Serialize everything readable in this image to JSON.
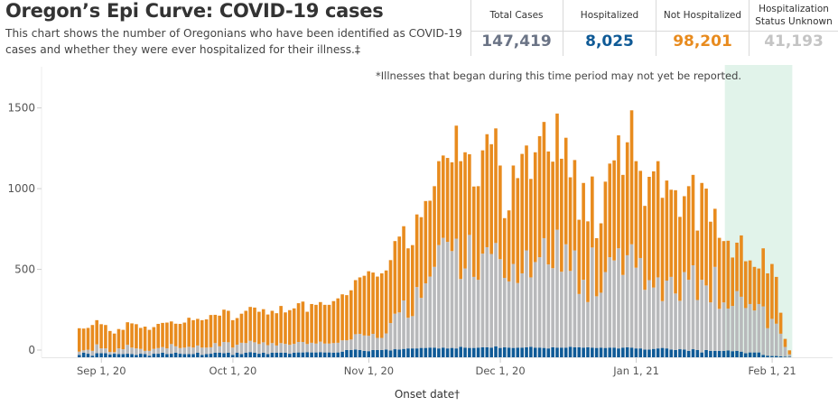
{
  "header": {
    "title": "Oregon’s Epi Curve: COVID-19 cases",
    "subtitle": "This chart shows the number of Oregonians who have been identified as COVID-19 cases and whether they were ever hospitalized for their illness.‡"
  },
  "kpis": [
    {
      "label": "Total Cases",
      "value": "147,419",
      "color": "#6b7486"
    },
    {
      "label": "Hospitalized",
      "value": "8,025",
      "color": "#0f5a96"
    },
    {
      "label": "Not Hospitalized",
      "value": "98,201",
      "color": "#e88b1e"
    },
    {
      "label": "Hospitalization Status Unknown",
      "value": "41,193",
      "color": "#c4c4c4"
    }
  ],
  "note": "*Illnesses that began during this time period may not yet be reported.",
  "chart_data": {
    "type": "bar",
    "stacked": true,
    "title": "",
    "xlabel": "Onset date†",
    "ylabel": "",
    "ylim": [
      0,
      1720
    ],
    "yticks": [
      0,
      500,
      1000,
      1500
    ],
    "x_start_date": "2020-08-27",
    "xticks": [
      {
        "label": "Sep 1, 20",
        "date": "2020-09-01"
      },
      {
        "label": "Oct 1, 20",
        "date": "2020-10-01"
      },
      {
        "label": "Nov 1, 20",
        "date": "2020-11-01"
      },
      {
        "label": "Dec 1, 20",
        "date": "2020-12-01"
      },
      {
        "label": "Jan 1, 21",
        "date": "2021-01-01"
      },
      {
        "label": "Feb 1, 21",
        "date": "2021-02-01"
      }
    ],
    "shaded_region": {
      "start_date": "2021-01-21",
      "end_date": "2021-02-06",
      "color": "#e1f3ea",
      "meaning": "Illnesses that began during this time period may not yet be reported"
    },
    "legend": [],
    "series": [
      {
        "name": "Hospitalized",
        "color": "#0f5a96",
        "values": [
          15,
          28,
          22,
          10,
          25,
          25,
          25,
          18,
          22,
          20,
          20,
          22,
          20,
          15,
          22,
          20,
          10,
          22,
          22,
          28,
          20,
          22,
          28,
          22,
          20,
          20,
          20,
          28,
          15,
          20,
          22,
          28,
          28,
          25,
          28,
          15,
          28,
          20,
          28,
          32,
          28,
          22,
          28,
          20,
          28,
          28,
          28,
          28,
          22,
          28,
          30,
          30,
          32,
          30,
          30,
          32,
          30,
          30,
          28,
          30,
          35,
          45,
          45,
          48,
          45,
          40,
          38,
          45,
          45,
          45,
          48,
          42,
          50,
          48,
          52,
          55,
          55,
          55,
          58,
          58,
          60,
          60,
          55,
          60,
          55,
          58,
          55,
          65,
          60,
          58,
          58,
          60,
          62,
          62,
          60,
          68,
          58,
          62,
          60,
          58,
          60,
          60,
          62,
          65,
          60,
          60,
          58,
          55,
          62,
          60,
          60,
          60,
          65,
          62,
          62,
          60,
          62,
          60,
          58,
          60,
          58,
          60,
          60,
          55,
          60,
          62,
          60,
          55,
          55,
          48,
          48,
          52,
          55,
          58,
          55,
          48,
          45,
          50,
          48,
          40,
          50,
          45,
          30,
          45,
          40,
          40,
          40,
          40,
          42,
          38,
          40,
          35,
          25,
          30,
          30,
          30,
          15,
          10,
          8,
          8,
          6,
          4,
          3
        ]
      },
      {
        "name": "Hospitalization Status Unknown",
        "color": "#b8b9bb",
        "values": [
          20,
          15,
          25,
          30,
          55,
          30,
          30,
          15,
          10,
          35,
          30,
          55,
          40,
          40,
          30,
          20,
          30,
          30,
          35,
          35,
          35,
          60,
          40,
          35,
          40,
          45,
          40,
          45,
          45,
          40,
          40,
          60,
          40,
          70,
          65,
          45,
          50,
          70,
          60,
          70,
          65,
          60,
          65,
          55,
          60,
          45,
          60,
          55,
          55,
          55,
          65,
          65,
          50,
          60,
          55,
          65,
          55,
          55,
          60,
          60,
          70,
          60,
          65,
          95,
          100,
          95,
          95,
          100,
          75,
          75,
          100,
          170,
          220,
          230,
          300,
          190,
          200,
          380,
          310,
          400,
          440,
          500,
          640,
          680,
          660,
          600,
          680,
          420,
          490,
          700,
          440,
          420,
          580,
          620,
          580,
          640,
          550,
          430,
          410,
          520,
          400,
          460,
          600,
          430,
          530,
          560,
          680,
          520,
          490,
          730,
          470,
          640,
          470,
          600,
          330,
          420,
          280,
          620,
          320,
          340,
          470,
          560,
          540,
          620,
          450,
          570,
          640,
          500,
          560,
          370,
          430,
          380,
          440,
          290,
          420,
          450,
          350,
          300,
          480,
          440,
          520,
          310,
          450,
          400,
          300,
          520,
          260,
          300,
          260,
          280,
          370,
          340,
          280,
          300,
          260,
          300,
          300,
          170,
          230,
          200,
          140,
          60,
          15
        ]
      },
      {
        "name": "Not Hospitalized",
        "color": "#e88b1e",
        "values": [
          145,
          135,
          135,
          160,
          150,
          150,
          145,
          130,
          115,
          120,
          120,
          140,
          150,
          150,
          130,
          150,
          130,
          135,
          150,
          150,
          160,
          140,
          140,
          150,
          155,
          180,
          170,
          165,
          170,
          175,
          200,
          175,
          190,
          200,
          195,
          170,
          165,
          180,
          200,
          210,
          215,
          200,
          205,
          190,
          200,
          200,
          230,
          195,
          215,
          220,
          240,
          250,
          200,
          240,
          240,
          245,
          240,
          240,
          260,
          275,
          285,
          280,
          305,
          335,
          350,
          370,
          400,
          380,
          380,
          400,
          390,
          390,
          450,
          470,
          460,
          430,
          440,
          450,
          500,
          510,
          470,
          500,
          520,
          510,
          520,
          550,
          700,
          730,
          720,
          500,
          560,
          580,
          640,
          700,
          680,
          710,
          580,
          370,
          440,
          610,
          650,
          740,
          650,
          610,
          680,
          750,
          720,
          700,
          660,
          720,
          700,
          660,
          580,
          560,
          460,
          600,
          500,
          440,
          360,
          430,
          560,
          580,
          620,
          700,
          620,
          700,
          830,
          660,
          540,
          520,
          640,
          720,
          720,
          640,
          620,
          540,
          640,
          520,
          470,
          580,
          560,
          430,
          600,
          600,
          500,
          360,
          440,
          380,
          420,
          300,
          300,
          380,
          290,
          270,
          270,
          220,
          360,
          340,
          340,
          290,
          130,
          50,
          25
        ]
      }
    ]
  }
}
